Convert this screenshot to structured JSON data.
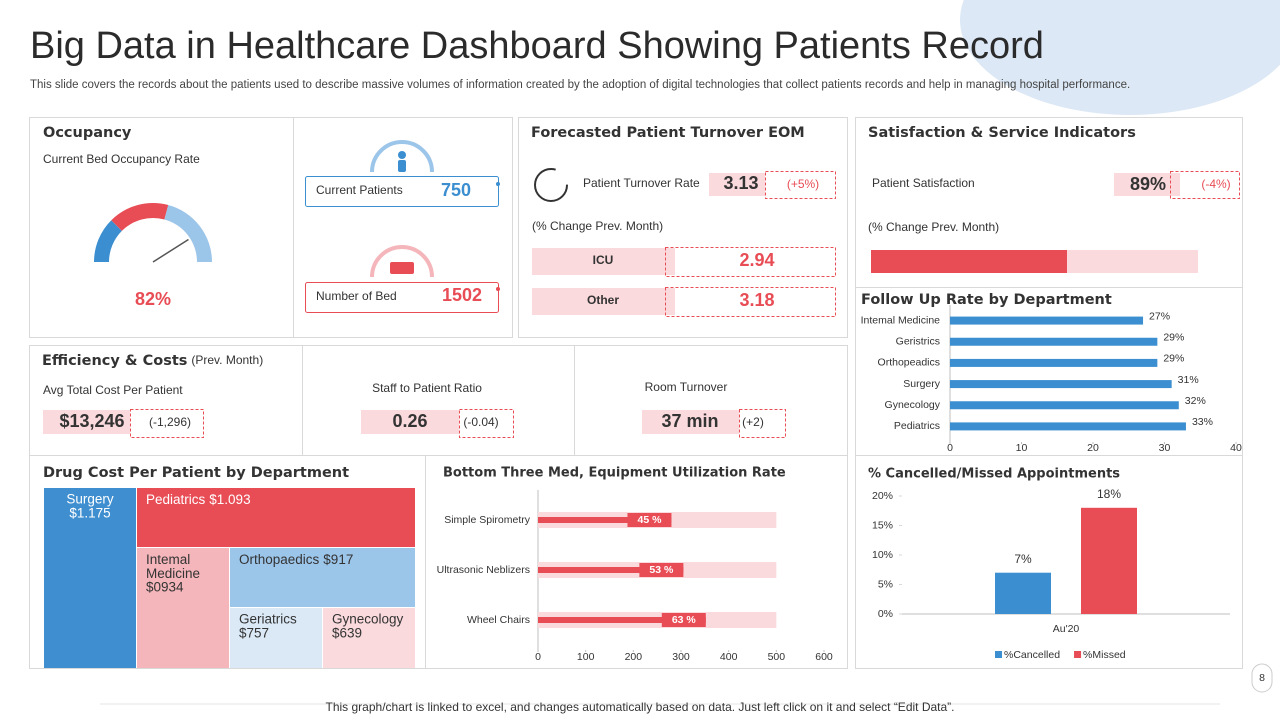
{
  "header": {
    "title": "Big Data in Healthcare Dashboard Showing Patients Record",
    "subtitle": "This slide covers the records about the patients used to describe massive volumes of information created by the adoption of digital technologies that collect patients records and help in managing hospital performance."
  },
  "patients": {
    "current": {
      "label": "Current  Patients",
      "value": 750
    },
    "beds": {
      "label": "Number of Bed",
      "value": 1502
    }
  },
  "turnover": {
    "title": "Forecasted Patient Turnover EOM",
    "label": "Patient Turnover Rate",
    "value": "3.13",
    "change": "(+5%)",
    "note": "(% Change Prev. Month)",
    "rows": [
      [
        "ICU",
        "2.94"
      ],
      [
        "Other",
        "3.18"
      ]
    ]
  },
  "satisfaction": {
    "title": "Satisfaction & Service Indicators",
    "label": "Patient Satisfaction",
    "value": "89%",
    "change": "(-4%)",
    "note": "(% Change Prev.  Month)"
  },
  "efficiency": {
    "title": "Efficiency  & Costs",
    "title_suffix": "(Prev. Month)",
    "items": [
      {
        "label": "Avg Total Cost Per Patient",
        "value": "$13,246",
        "change": "(-1,296)"
      },
      {
        "label": "Staff to Patient Ratio",
        "value": "0.26",
        "change": "(-0.04)"
      },
      {
        "label": "Room Turnover",
        "value": "37 min",
        "change": "(+2)"
      }
    ]
  },
  "chart_data": [
    {
      "type": "gauge",
      "title": "Occupancy",
      "subtitle": "Current Bed Occupancy Rate",
      "value": 82,
      "value_label": "82%",
      "ylim": [
        0,
        100
      ]
    },
    {
      "type": "treemap",
      "title": "Drug Cost Per Patient by Department",
      "items": [
        {
          "name": "Surgery",
          "value_label": "$1.175"
        },
        {
          "name": "Pediatrics",
          "value_label": "$1.093"
        },
        {
          "name": "Intemal Medicine",
          "value_label": "$0934"
        },
        {
          "name": "Orthopaedics",
          "value_label": "$917"
        },
        {
          "name": "Geriatrics",
          "value_label": "$757"
        },
        {
          "name": "Gynecology",
          "value_label": "$639"
        }
      ]
    },
    {
      "type": "hbar",
      "title": "Bottom Three Med, Equipment  Utilization Rate",
      "categories": [
        "Simple Spirometry",
        "Ultrasonic Neblizers",
        "Wheel Chairs"
      ],
      "series": [
        {
          "color": "#fadadd",
          "values": [
            500,
            500,
            500
          ]
        },
        {
          "color": "#e84c55",
          "values": [
            280,
            305,
            352
          ],
          "annotations": [
            "45 %",
            "53 %",
            "63 %"
          ]
        }
      ],
      "xlim": [
        0,
        600
      ],
      "xticks": [
        0,
        100,
        200,
        300,
        400,
        500,
        600
      ]
    },
    {
      "type": "hbar",
      "title": "Follow Up Rate by Department",
      "categories": [
        "Intemal Medicine",
        "Geristrics",
        "Orthopeadics",
        "Surgery",
        "Gynecology",
        "Pediatrics"
      ],
      "values": [
        27,
        29,
        29,
        31,
        32,
        33
      ],
      "value_labels": [
        "27%",
        "29%",
        "29%",
        "31%",
        "32%",
        "33%"
      ],
      "color": "#3b8fd0",
      "xlim": [
        0,
        40
      ],
      "xticks": [
        0,
        10,
        20,
        30,
        40
      ]
    },
    {
      "type": "bar",
      "title": "% Cancelled/Missed Appointments",
      "categories": [
        "Au'20"
      ],
      "series": [
        {
          "name": "%Cancelled",
          "color": "#3b8fd0",
          "values": [
            7
          ],
          "value_labels": [
            "7%"
          ]
        },
        {
          "name": "%Missed",
          "color": "#e84c55",
          "values": [
            18
          ],
          "value_labels": [
            "18%"
          ]
        }
      ],
      "ylim": [
        0,
        20
      ],
      "yticks": [
        {
          "value": 0,
          "label": "0%"
        },
        {
          "value": 5,
          "label": "5%"
        },
        {
          "value": 10,
          "label": "10%"
        },
        {
          "value": 15,
          "label": "15%"
        },
        {
          "value": 20,
          "label": "20%"
        }
      ],
      "legend": "bottom",
      "grid": false
    }
  ],
  "footer": "This graph/chart is linked to excel, and changes automatically based on data. Just left click on it and select “Edit Data”.",
  "page_number": 8
}
